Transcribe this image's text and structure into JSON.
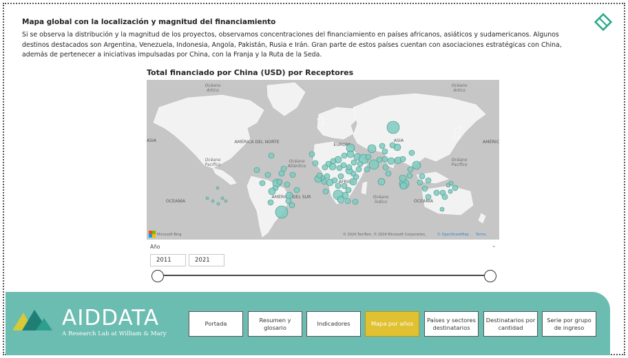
{
  "intro": {
    "title": "Mapa global con la localización y magnitud del financiamiento",
    "paragraph": "Si se observa la distribución y la magnitud de los proyectos, observamos concentraciones del financiamiento en países africanos, asiáticos y sudamericanos. Algunos destinos destacados son Argentina, Venezuela, Indonesia, Angola, Pakistán, Rusia e Irán. Gran parte de estos países cuentan con asociaciones estratégicas con China, además de pertenecer a iniciativas impulsadas por China, con la Franja y la Ruta de la Seda."
  },
  "map": {
    "title": "Total financiado por China (USD) por Receptores",
    "labels": {
      "oceano_artico_1": "Océano\nÁrtico",
      "oceano_artico_2": "Océano\nÁrtico",
      "america_norte": "AMÉRICA DEL NORTE",
      "europa": "EUROPA",
      "asia": "ASIA",
      "asia_left": "ASIA",
      "america_right": "AMÉRIC",
      "oceano_pacifico_1": "Océano\nPacífico",
      "oceano_atlantico": "Océano\nAtlántico",
      "oceano_pacifico_2": "Océano\nPacífico",
      "africa": "ÁFRICA",
      "america_sur": "AMÉRICA DEL SUR",
      "oceano_indico": "Océano\nÍndico",
      "oceania_1": "OCEANÍA",
      "oceania_2": "OCEANÍA"
    },
    "attribution_left": "Microsoft Bing",
    "attribution_right": "© 2024 TomTom, © 2024 Microsoft Corporation,",
    "attribution_osm": "© OpenStreetMap",
    "attribution_terms": "Terms",
    "bubble_color": "#7fcbc0"
  },
  "slicer": {
    "label": "Año",
    "start_year": "2011",
    "end_year": "2021"
  },
  "footer": {
    "brand": "AIDDATA",
    "tagline": "A Research Lab at William & Mary",
    "buttons": [
      {
        "label": "Portada",
        "active": false
      },
      {
        "label": "Resumen y glosario",
        "active": false
      },
      {
        "label": "Indicadores",
        "active": false
      },
      {
        "label": "Mapa por años",
        "active": true
      },
      {
        "label": "Países y sectores destinatarios",
        "active": false
      },
      {
        "label": "Destinatarios por cantidad",
        "active": false
      },
      {
        "label": "Serie por grupo de ingreso",
        "active": false
      }
    ]
  },
  "colors": {
    "accent": "#6bbcb1",
    "active_button": "#e0c132",
    "diamond": "#29a98b"
  }
}
